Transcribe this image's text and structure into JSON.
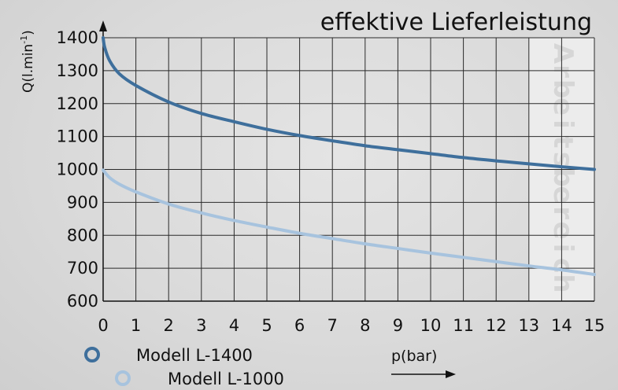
{
  "chart_data": {
    "type": "line",
    "title": "effektive Lieferleistung",
    "xlabel": "p(bar)",
    "ylabel_main": "Q(l.min",
    "ylabel_sup": "-1",
    "ylabel_close": ")",
    "xlim": [
      0,
      15
    ],
    "ylim": [
      600,
      1400
    ],
    "xticks": [
      0,
      1,
      2,
      3,
      4,
      5,
      6,
      7,
      8,
      9,
      10,
      11,
      12,
      13,
      14,
      15
    ],
    "yticks": [
      600,
      700,
      800,
      900,
      1000,
      1100,
      1200,
      1300,
      1400
    ],
    "grid": true,
    "band": {
      "from": 13,
      "to": 15,
      "label": "Arbeitsbereich"
    },
    "series": [
      {
        "name": "Modell L-1400",
        "color": "#3e6f9c",
        "x": [
          0,
          0.05,
          0.2,
          0.5,
          1,
          2,
          3,
          4,
          5,
          6,
          7,
          8,
          9,
          10,
          11,
          12,
          13,
          14,
          15
        ],
        "y": [
          1400,
          1370,
          1330,
          1290,
          1255,
          1205,
          1170,
          1145,
          1122,
          1103,
          1087,
          1072,
          1060,
          1048,
          1036,
          1026,
          1017,
          1008,
          1000
        ]
      },
      {
        "name": "Modell L-1000",
        "color": "#a7c3de",
        "x": [
          0,
          0.2,
          0.5,
          1,
          2,
          3,
          4,
          5,
          6,
          7,
          8,
          9,
          10,
          11,
          12,
          13,
          14,
          15
        ],
        "y": [
          998,
          975,
          955,
          932,
          895,
          868,
          845,
          825,
          806,
          790,
          774,
          760,
          746,
          733,
          720,
          707,
          695,
          681
        ]
      }
    ]
  }
}
